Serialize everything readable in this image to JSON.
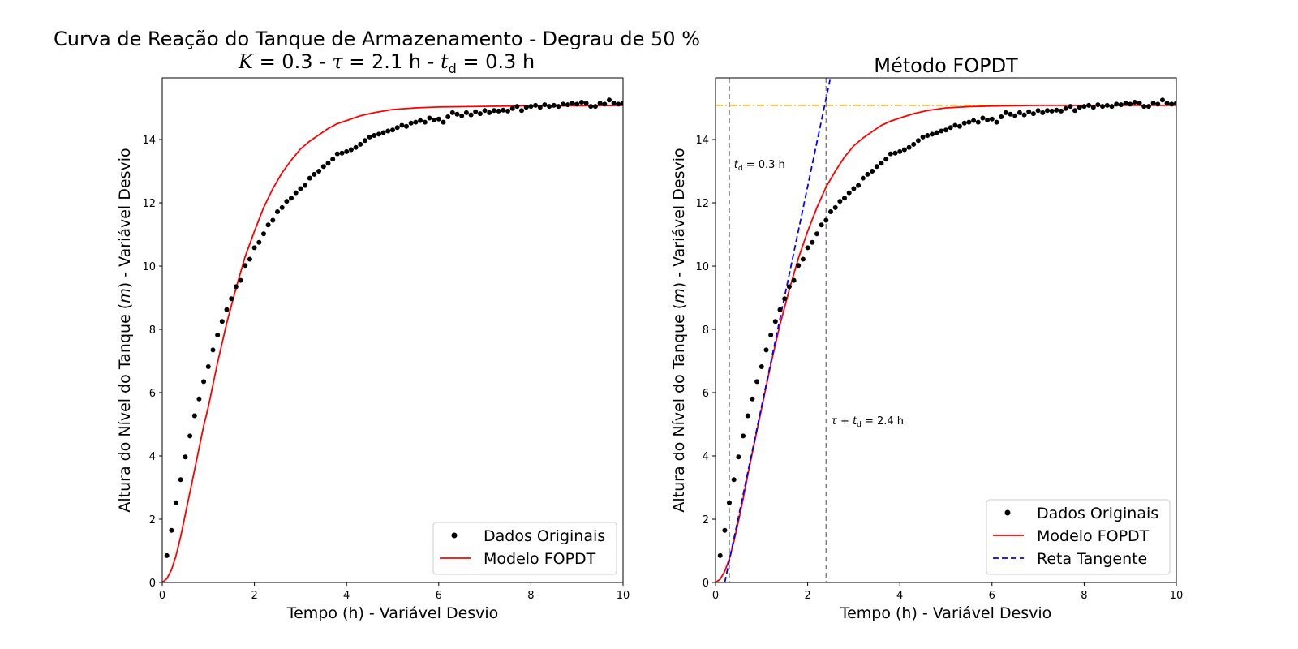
{
  "figure": {
    "title_line1": "Curva de Reação do Tanque de Armazenamento - Degrau de 50 %",
    "title_line2_parts": [
      "K",
      " = 0.3 - ",
      "τ",
      " = 2.1 h - ",
      "t",
      "d",
      " = 0.3 h"
    ]
  },
  "chart_data": [
    {
      "type": "line",
      "title": "",
      "xlabel": "Tempo (h) - Variável Desvio",
      "ylabel": "Altura do Nível do Tanque (m) - Variável Desvio",
      "xlim": [
        0,
        10
      ],
      "ylim": [
        0,
        15.95
      ],
      "xticks": [
        0,
        2,
        4,
        6,
        8,
        10
      ],
      "yticks": [
        0,
        2,
        4,
        6,
        8,
        10,
        12,
        14
      ],
      "grid": false,
      "legend": {
        "placement": "lower-right",
        "entries": [
          "Dados Originais",
          "Modelo FOPDT"
        ]
      },
      "series": [
        {
          "name": "Dados Originais",
          "kind": "scatter",
          "color": "#000000",
          "x": [
            0.1,
            0.2,
            0.3,
            0.4,
            0.5,
            0.6,
            0.7,
            0.8,
            0.9,
            1.0,
            1.1,
            1.2,
            1.3,
            1.4,
            1.5,
            1.6,
            1.7,
            1.8,
            1.9,
            2.0,
            2.1,
            2.2,
            2.3,
            2.4,
            2.5,
            2.6,
            2.7,
            2.8,
            2.9,
            3.0,
            3.1,
            3.2,
            3.3,
            3.4,
            3.5,
            3.6,
            3.7,
            3.8,
            3.9,
            4.0,
            4.1,
            4.2,
            4.3,
            4.4,
            4.5,
            4.6,
            4.7,
            4.8,
            4.9,
            5.0,
            5.1,
            5.2,
            5.3,
            5.4,
            5.5,
            5.6,
            5.7,
            5.8,
            5.9,
            6.0,
            6.1,
            6.2,
            6.3,
            6.4,
            6.5,
            6.6,
            6.7,
            6.8,
            6.9,
            7.0,
            7.1,
            7.2,
            7.3,
            7.4,
            7.5,
            7.6,
            7.7,
            7.8,
            7.9,
            8.0,
            8.1,
            8.2,
            8.3,
            8.4,
            8.5,
            8.6,
            8.7,
            8.8,
            8.9,
            9.0,
            9.1,
            9.2,
            9.3,
            9.4,
            9.5,
            9.6,
            9.7,
            9.8,
            9.9,
            10.0
          ],
          "y": [
            0.85,
            1.65,
            2.52,
            3.25,
            3.97,
            4.63,
            5.27,
            5.8,
            6.35,
            6.82,
            7.35,
            7.82,
            8.25,
            8.62,
            8.97,
            9.35,
            9.55,
            10.02,
            10.22,
            10.58,
            10.75,
            11.02,
            11.3,
            11.45,
            11.72,
            11.85,
            12.05,
            12.15,
            12.32,
            12.45,
            12.55,
            12.78,
            12.9,
            13.0,
            13.15,
            13.25,
            13.38,
            13.55,
            13.57,
            13.62,
            13.68,
            13.75,
            13.85,
            13.97,
            14.08,
            14.13,
            14.17,
            14.22,
            14.27,
            14.3,
            14.38,
            14.45,
            14.42,
            14.52,
            14.55,
            14.6,
            14.55,
            14.68,
            14.62,
            14.65,
            14.55,
            14.72,
            14.85,
            14.8,
            14.75,
            14.85,
            14.78,
            14.88,
            14.82,
            14.92,
            14.85,
            14.92,
            14.9,
            14.93,
            14.9,
            14.98,
            15.05,
            14.92,
            15.02,
            15.05,
            15.08,
            15.02,
            15.1,
            15.05,
            15.08,
            15.05,
            15.12,
            15.1,
            15.15,
            15.12,
            15.18,
            15.15,
            15.05,
            15.05,
            15.15,
            15.12,
            15.25,
            15.15,
            15.12,
            15.15
          ]
        },
        {
          "name": "Modelo FOPDT",
          "kind": "line",
          "color": "#ff0000",
          "x": [
            0,
            0.1,
            0.2,
            0.3,
            0.4,
            0.5,
            0.6,
            0.7,
            0.8,
            0.9,
            1.0,
            1.2,
            1.4,
            1.6,
            1.8,
            2.0,
            2.2,
            2.4,
            2.6,
            2.8,
            3.0,
            3.2,
            3.4,
            3.6,
            3.8,
            4.0,
            4.3,
            4.6,
            5.0,
            5.5,
            6.0,
            6.5,
            7.0,
            7.5,
            8.0,
            9.0,
            10.0
          ],
          "y": [
            0,
            0.12,
            0.4,
            0.85,
            1.45,
            2.15,
            2.85,
            3.55,
            4.25,
            4.95,
            5.55,
            6.95,
            8.2,
            9.3,
            10.3,
            11.1,
            11.85,
            12.45,
            12.95,
            13.35,
            13.7,
            13.95,
            14.15,
            14.35,
            14.5,
            14.6,
            14.75,
            14.85,
            14.95,
            15.0,
            15.03,
            15.04,
            15.05,
            15.06,
            15.07,
            15.07,
            15.08
          ]
        }
      ]
    },
    {
      "type": "line",
      "title": "Método FOPDT",
      "xlabel": "Tempo (h) - Variável Desvio",
      "ylabel": "Altura do Nível do Tanque (m) - Variável Desvio",
      "xlim": [
        0,
        10
      ],
      "ylim": [
        0,
        15.95
      ],
      "xticks": [
        0,
        2,
        4,
        6,
        8,
        10
      ],
      "yticks": [
        0,
        2,
        4,
        6,
        8,
        10,
        12,
        14
      ],
      "grid": false,
      "legend": {
        "placement": "lower-right",
        "entries": [
          "Dados Originais",
          "Modelo FOPDT",
          "Reta Tangente"
        ]
      },
      "series": [
        {
          "name": "Dados Originais",
          "kind": "scatter",
          "color": "#000000",
          "same_as_panel_1": true
        },
        {
          "name": "Modelo FOPDT",
          "kind": "line",
          "color": "#ff0000",
          "x": [
            0,
            0.1,
            0.2,
            0.3,
            0.4,
            0.5,
            0.6,
            0.7,
            0.8,
            0.9,
            1.0,
            1.2,
            1.4,
            1.6,
            1.8,
            2.0,
            2.2,
            2.4,
            2.6,
            2.8,
            3.0,
            3.2,
            3.4,
            3.6,
            3.8,
            4.0,
            4.3,
            4.6,
            5.0,
            5.5,
            6.0,
            6.5,
            7.0,
            7.5,
            8.0,
            9.0,
            10.0
          ],
          "y": [
            0,
            0.1,
            0.35,
            0.75,
            1.3,
            1.95,
            2.65,
            3.4,
            4.1,
            4.8,
            5.5,
            6.9,
            8.15,
            9.25,
            10.25,
            11.1,
            11.85,
            12.5,
            13.0,
            13.45,
            13.8,
            14.05,
            14.25,
            14.45,
            14.58,
            14.68,
            14.82,
            14.92,
            15.0,
            15.04,
            15.06,
            15.07,
            15.08,
            15.08,
            15.08,
            15.08,
            15.08
          ]
        },
        {
          "name": "Reta Tangente",
          "kind": "line",
          "style": "dashed",
          "color": "#0000ff",
          "x": [
            0.2,
            2.5
          ],
          "y": [
            0,
            16.0
          ]
        }
      ],
      "reference_lines": [
        {
          "orientation": "horizontal",
          "value": 15.08,
          "style": "dashdot",
          "color": "#ffa500"
        },
        {
          "orientation": "vertical",
          "value": 0.3,
          "style": "dashed",
          "color": "#808080"
        },
        {
          "orientation": "vertical",
          "value": 2.4,
          "style": "dashed",
          "color": "#808080"
        }
      ],
      "annotations": [
        {
          "parts": [
            "t",
            "d",
            " = 0.3 h"
          ],
          "x": 0.4,
          "y": 13.1
        },
        {
          "parts": [
            "τ",
            " + ",
            "t",
            "d",
            " = 2.4 h"
          ],
          "x": 2.5,
          "y": 5.0
        }
      ]
    }
  ]
}
